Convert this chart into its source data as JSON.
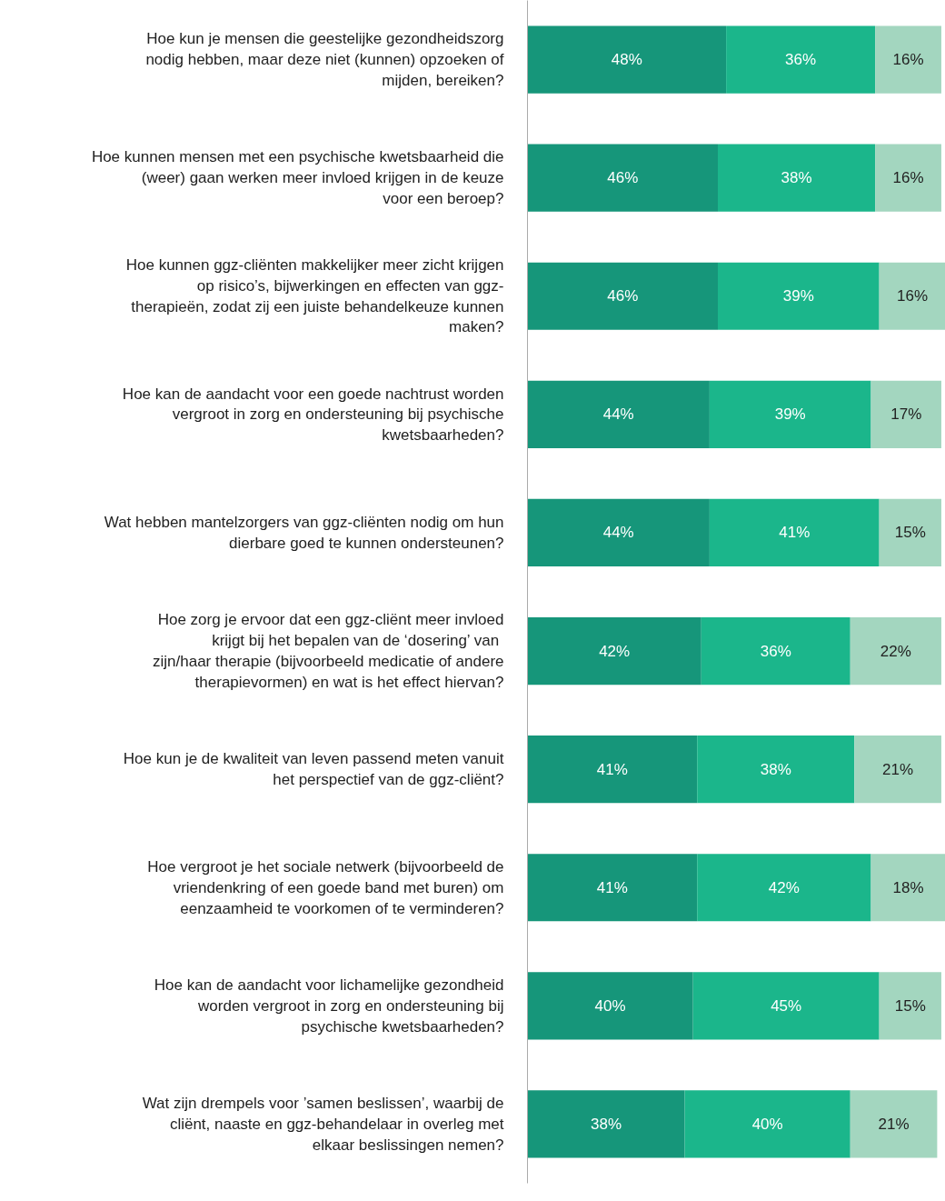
{
  "chart_data": {
    "type": "bar",
    "orientation": "horizontal",
    "stacked": true,
    "grid": false,
    "tick_labels": "y",
    "xlim": [
      0,
      101
    ],
    "categories": [
      "Hoe kun je mensen die geestelijke gezondheidszorg nodig hebben, maar deze niet (kunnen) opzoeken of mijden, bereiken?",
      "Hoe kunnen mensen met een psychische kwetsbaarheid die (weer) gaan werken meer invloed krijgen in de keuze voor een beroep?",
      "Hoe kunnen ggz-cliënten makkelijker meer zicht krijgen op risico’s, bijwerkingen en effecten van ggz-therapieën, zodat zij een juiste behandelkeuze kunnen maken?",
      "Hoe kan de aandacht voor een goede nachtrust worden vergroot in zorg en ondersteuning bij psychische kwetsbaarheden?",
      "Wat hebben mantelzorgers van ggz-cliënten nodig om hun dierbare goed te kunnen ondersteunen?",
      "Hoe zorg je ervoor dat een ggz-cliënt meer invloed krijgt bij het bepalen van de ‘dosering’  van zijn/haar therapie (bijvoorbeeld medicatie of andere therapievormen) en wat is het effect hiervan?",
      "Hoe kun je de kwaliteit van leven passend meten vanuit het perspectief van de ggz-cliënt?",
      "Hoe vergroot je het sociale netwerk (bijvoorbeeld de vriendenkring of een goede band met buren) om eenzaamheid te voorkomen of te verminderen?",
      "Hoe kan de aandacht voor lichamelijke gezondheid worden vergroot in zorg en ondersteuning bij psychische kwetsbaarheden?",
      "Wat zijn drempels voor ’samen beslissen’, waarbij de cliënt, naaste en ggz-behandelaar in overleg met elkaar beslissingen nemen?"
    ],
    "series": [
      {
        "color": "#16967a",
        "values": [
          48,
          46,
          46,
          44,
          44,
          42,
          41,
          41,
          40,
          38
        ],
        "value_labels": [
          "48%",
          "46%",
          "46%",
          "44%",
          "44%",
          "42%",
          "41%",
          "41%",
          "40%",
          "38%"
        ]
      },
      {
        "color": "#1bb68b",
        "values": [
          36,
          38,
          39,
          39,
          41,
          36,
          38,
          42,
          45,
          40
        ],
        "value_labels": [
          "36%",
          "38%",
          "39%",
          "39%",
          "41%",
          "36%",
          "38%",
          "42%",
          "45%",
          "40%"
        ]
      },
      {
        "color": "#a3d6bf",
        "values": [
          16,
          16,
          16,
          17,
          15,
          22,
          21,
          18,
          15,
          21
        ],
        "value_labels": [
          "16%",
          "16%",
          "16%",
          "17%",
          "15%",
          "22%",
          "21%",
          "18%",
          "15%",
          "21%"
        ]
      }
    ]
  }
}
